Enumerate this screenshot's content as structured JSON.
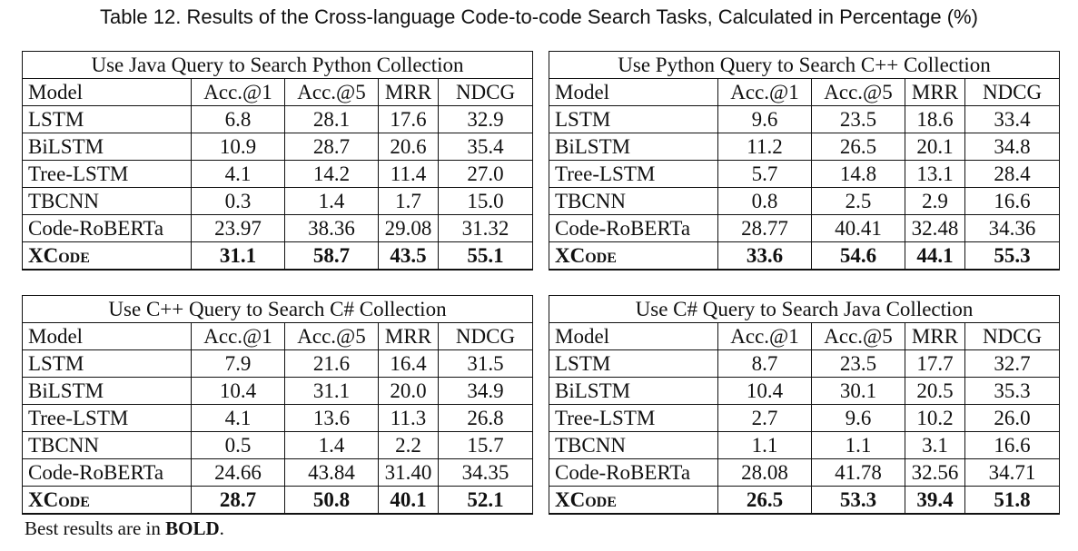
{
  "caption": "Table 12.  Results of the Cross-language Code-to-code Search Tasks, Calculated in Percentage (%)",
  "columns": [
    "Model",
    "Acc.@1",
    "Acc.@5",
    "MRR",
    "NDCG"
  ],
  "tables": [
    {
      "title": "Use Java Query to Search Python Collection",
      "rows": [
        [
          "LSTM",
          "6.8",
          "28.1",
          "17.6",
          "32.9"
        ],
        [
          "BiLSTM",
          "10.9",
          "28.7",
          "20.6",
          "35.4"
        ],
        [
          "Tree-LSTM",
          "4.1",
          "14.2",
          "11.4",
          "27.0"
        ],
        [
          "TBCNN",
          "0.3",
          "1.4",
          "1.7",
          "15.0"
        ],
        [
          "Code-RoBERTa",
          "23.97",
          "38.36",
          "29.08",
          "31.32"
        ],
        [
          "XCode",
          "31.1",
          "58.7",
          "43.5",
          "55.1"
        ]
      ]
    },
    {
      "title": "Use Python Query to Search C++ Collection",
      "rows": [
        [
          "LSTM",
          "9.6",
          "23.5",
          "18.6",
          "33.4"
        ],
        [
          "BiLSTM",
          "11.2",
          "26.5",
          "20.1",
          "34.8"
        ],
        [
          "Tree-LSTM",
          "5.7",
          "14.8",
          "13.1",
          "28.4"
        ],
        [
          "TBCNN",
          "0.8",
          "2.5",
          "2.9",
          "16.6"
        ],
        [
          "Code-RoBERTa",
          "28.77",
          "40.41",
          "32.48",
          "34.36"
        ],
        [
          "XCode",
          "33.6",
          "54.6",
          "44.1",
          "55.3"
        ]
      ]
    },
    {
      "title": "Use C++ Query to Search C# Collection",
      "rows": [
        [
          "LSTM",
          "7.9",
          "21.6",
          "16.4",
          "31.5"
        ],
        [
          "BiLSTM",
          "10.4",
          "31.1",
          "20.0",
          "34.9"
        ],
        [
          "Tree-LSTM",
          "4.1",
          "13.6",
          "11.3",
          "26.8"
        ],
        [
          "TBCNN",
          "0.5",
          "1.4",
          "2.2",
          "15.7"
        ],
        [
          "Code-RoBERTa",
          "24.66",
          "43.84",
          "31.40",
          "34.35"
        ],
        [
          "XCode",
          "28.7",
          "50.8",
          "40.1",
          "52.1"
        ]
      ]
    },
    {
      "title": "Use C# Query to Search Java Collection",
      "rows": [
        [
          "LSTM",
          "8.7",
          "23.5",
          "17.7",
          "32.7"
        ],
        [
          "BiLSTM",
          "10.4",
          "30.1",
          "20.5",
          "35.3"
        ],
        [
          "Tree-LSTM",
          "2.7",
          "9.6",
          "10.2",
          "26.0"
        ],
        [
          "TBCNN",
          "1.1",
          "1.1",
          "3.1",
          "16.6"
        ],
        [
          "Code-RoBERTa",
          "28.08",
          "41.78",
          "32.56",
          "34.71"
        ],
        [
          "XCode",
          "26.5",
          "53.3",
          "39.4",
          "51.8"
        ]
      ]
    }
  ],
  "note": {
    "prefix": "Best results are in ",
    "emphasis": "BOLD",
    "suffix": "."
  }
}
